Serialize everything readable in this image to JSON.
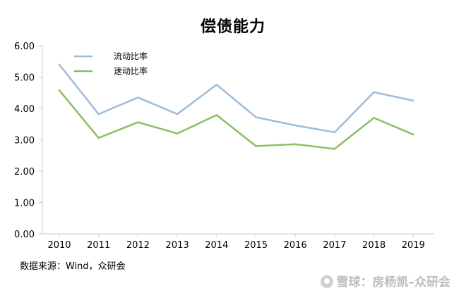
{
  "chart_data": {
    "type": "line",
    "title": "偿债能力",
    "xlabel": "",
    "ylabel": "",
    "categories": [
      "2010",
      "2011",
      "2012",
      "2013",
      "2014",
      "2015",
      "2016",
      "2017",
      "2018",
      "2019"
    ],
    "ylim": [
      0,
      6
    ],
    "yticks": [
      "0.00",
      "1.00",
      "2.00",
      "3.00",
      "4.00",
      "5.00",
      "6.00"
    ],
    "grid": false,
    "legend_position": "top-left",
    "series": [
      {
        "name": "流动比率",
        "color": "#9dbcdc",
        "values": [
          5.4,
          3.82,
          4.35,
          3.82,
          4.76,
          3.72,
          3.46,
          3.24,
          4.52,
          4.25
        ]
      },
      {
        "name": "速动比率",
        "color": "#8cbf63",
        "values": [
          4.58,
          3.06,
          3.56,
          3.2,
          3.79,
          2.8,
          2.86,
          2.71,
          3.7,
          3.17
        ]
      }
    ]
  },
  "source_note": "数据来源：Wind，众研会",
  "watermark": "雪球：房杨凯–众研会"
}
